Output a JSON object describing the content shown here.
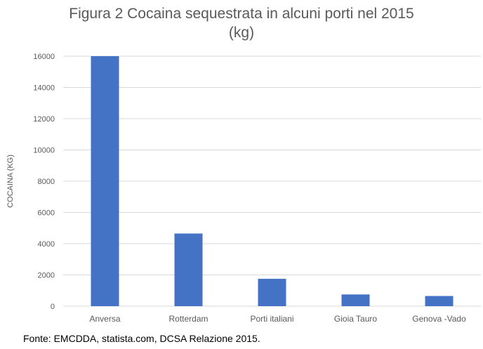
{
  "chart_data": {
    "type": "bar",
    "title_lines": [
      "Figura 2 Cocaina sequestrata in alcuni porti nel 2015",
      "(kg)"
    ],
    "ylabel": "COCAINA (KG)",
    "xlabel": "",
    "categories": [
      "Anversa",
      "Rotterdam",
      "Porti italiani",
      "Gioia Tauro",
      "Genova -Vado"
    ],
    "values": [
      16000,
      4650,
      1750,
      750,
      650
    ],
    "ylim": [
      0,
      16000
    ],
    "yticks": [
      0,
      2000,
      4000,
      6000,
      8000,
      10000,
      12000,
      14000,
      16000
    ],
    "grid": true,
    "legend": "none",
    "bar_color": "#4472C4",
    "grid_color": "#D9D9D9"
  },
  "source_note": "Fonte: EMCDDA, statista.com, DCSA Relazione 2015."
}
